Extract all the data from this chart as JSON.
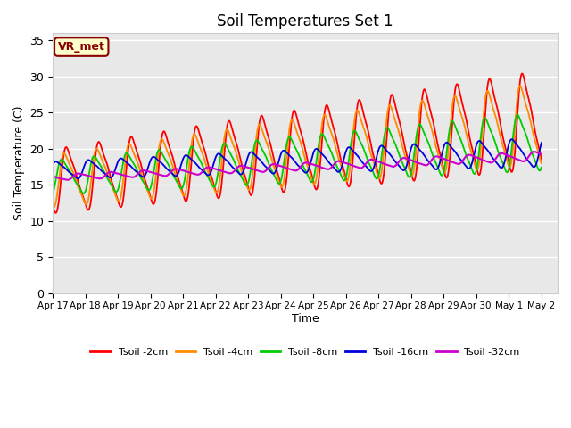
{
  "title": "Soil Temperatures Set 1",
  "xlabel": "Time",
  "ylabel": "Soil Temperature (C)",
  "ylim": [
    0,
    36
  ],
  "xlim_days": 15.5,
  "xtick_labels": [
    "Apr 17",
    "Apr 18",
    "Apr 19",
    "Apr 20",
    "Apr 21",
    "Apr 22",
    "Apr 23",
    "Apr 24",
    "Apr 25",
    "Apr 26",
    "Apr 27",
    "Apr 28",
    "Apr 29",
    "Apr 30",
    "May 1",
    "May 2"
  ],
  "series_colors": [
    "#ff0000",
    "#ff8c00",
    "#00cc00",
    "#0000dd",
    "#cc00cc"
  ],
  "series_labels": [
    "Tsoil -2cm",
    "Tsoil -4cm",
    "Tsoil -8cm",
    "Tsoil -16cm",
    "Tsoil -32cm"
  ],
  "annotation_text": "VR_met",
  "bg_color": "#e8e8e8",
  "fig_bg": "#ffffff",
  "grid_color": "#ffffff",
  "yticks": [
    0,
    5,
    10,
    15,
    20,
    25,
    30,
    35
  ],
  "n_points": 1500
}
